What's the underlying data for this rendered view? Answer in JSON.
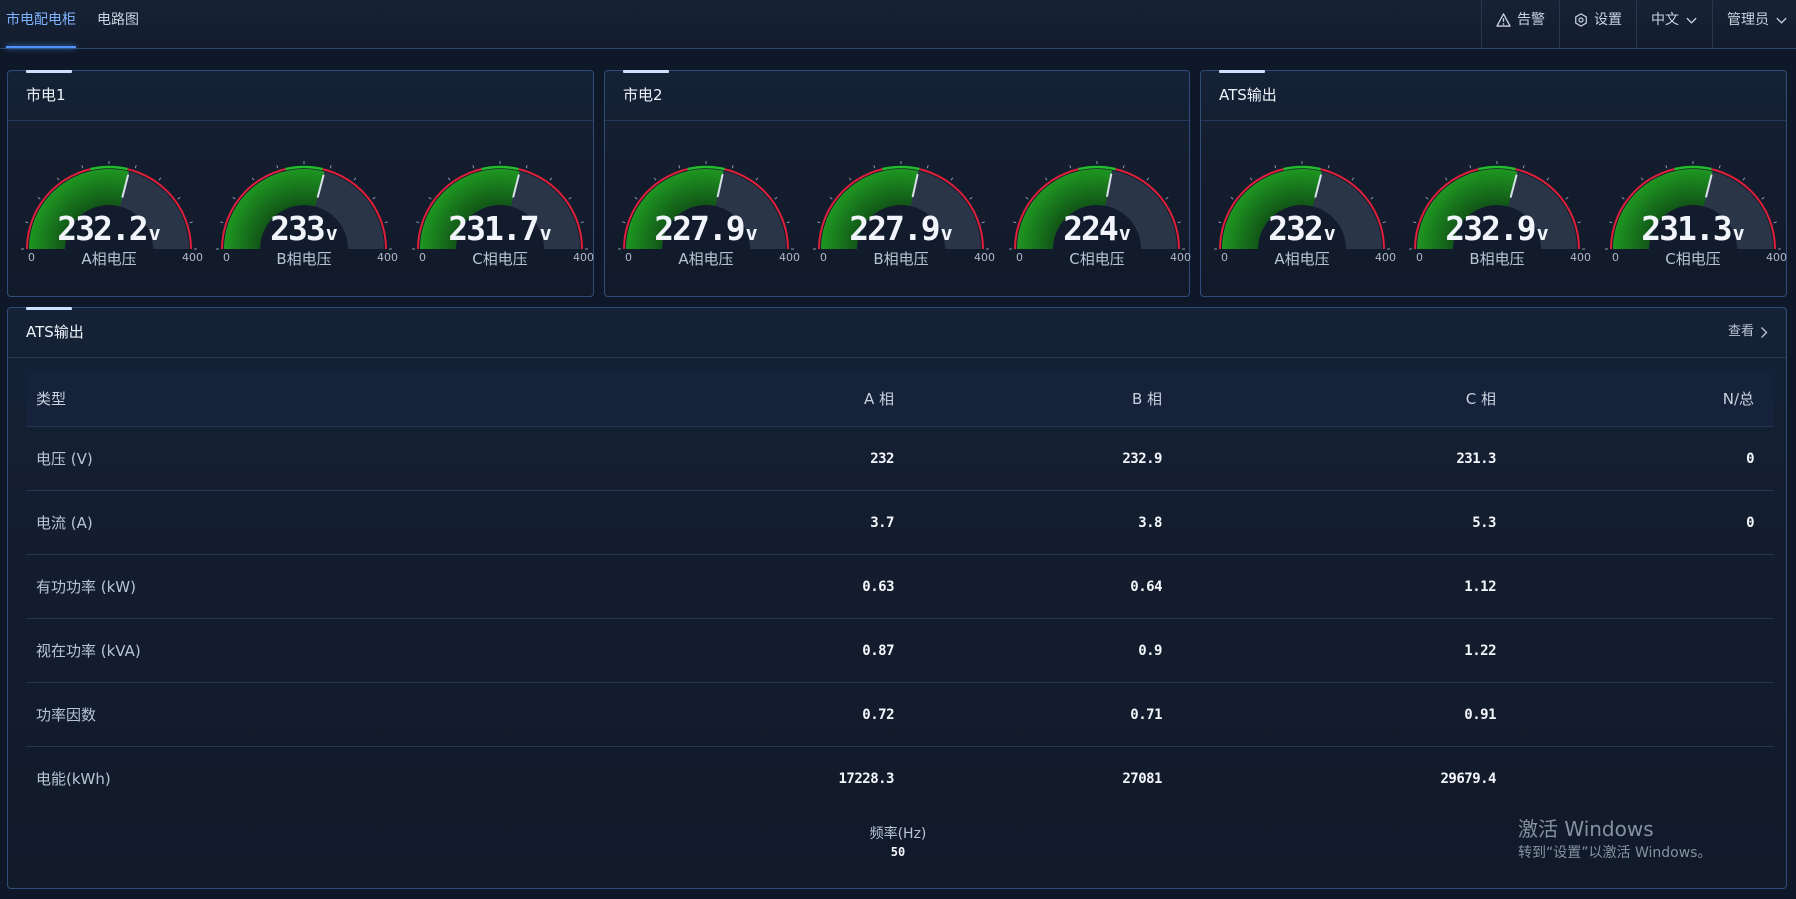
{
  "nav": {
    "tabs": [
      {
        "label": "市电配电柜",
        "active": true
      },
      {
        "label": "电路图",
        "active": false
      }
    ],
    "alarm_label": "告警",
    "settings_label": "设置",
    "language_label": "中文",
    "user_label": "管理员"
  },
  "gauge_panels": [
    {
      "title": "市电1",
      "gauges": [
        {
          "value": "232.2",
          "num": 232.2,
          "unit": "v",
          "label": "A相电压",
          "min": "0",
          "max": "400"
        },
        {
          "value": "233",
          "num": 233,
          "unit": "v",
          "label": "B相电压",
          "min": "0",
          "max": "400"
        },
        {
          "value": "231.7",
          "num": 231.7,
          "unit": "v",
          "label": "C相电压",
          "min": "0",
          "max": "400"
        }
      ]
    },
    {
      "title": "市电2",
      "gauges": [
        {
          "value": "227.9",
          "num": 227.9,
          "unit": "v",
          "label": "A相电压",
          "min": "0",
          "max": "400"
        },
        {
          "value": "227.9",
          "num": 227.9,
          "unit": "v",
          "label": "B相电压",
          "min": "0",
          "max": "400"
        },
        {
          "value": "224",
          "num": 224,
          "unit": "v",
          "label": "C相电压",
          "min": "0",
          "max": "400"
        }
      ]
    },
    {
      "title": "ATS输出",
      "gauges": [
        {
          "value": "232",
          "num": 232,
          "unit": "v",
          "label": "A相电压",
          "min": "0",
          "max": "400"
        },
        {
          "value": "232.9",
          "num": 232.9,
          "unit": "v",
          "label": "B相电压",
          "min": "0",
          "max": "400"
        },
        {
          "value": "231.3",
          "num": 231.3,
          "unit": "v",
          "label": "C相电压",
          "min": "0",
          "max": "400"
        }
      ]
    }
  ],
  "table_panel": {
    "title": "ATS输出",
    "view_label": "查看",
    "headers": [
      "类型",
      "A 相",
      "B 相",
      "C 相",
      "N/总"
    ],
    "rows": [
      {
        "type": "电压 (V)",
        "a": "232",
        "b": "232.9",
        "c": "231.3",
        "n": "0"
      },
      {
        "type": "电流 (A)",
        "a": "3.7",
        "b": "3.8",
        "c": "5.3",
        "n": "0"
      },
      {
        "type": "有功功率 (kW)",
        "a": "0.63",
        "b": "0.64",
        "c": "1.12",
        "n": ""
      },
      {
        "type": "视在功率 (kVA)",
        "a": "0.87",
        "b": "0.9",
        "c": "1.22",
        "n": ""
      },
      {
        "type": "功率因数",
        "a": "0.72",
        "b": "0.71",
        "c": "0.91",
        "n": ""
      },
      {
        "type": "电能(kWh)",
        "a": "17228.3",
        "b": "27081",
        "c": "29679.4",
        "n": ""
      }
    ],
    "frequency_label": "频率(Hz)",
    "frequency_value": "50"
  },
  "watermark": {
    "line1": "激活 Windows",
    "line2": "转到“设置”以激活 Windows。"
  },
  "colors": {
    "background": "#0f1828",
    "accent": "#4f93ff",
    "gauge_fill": "#1c8a1c",
    "gauge_limit": "#e0203a"
  }
}
